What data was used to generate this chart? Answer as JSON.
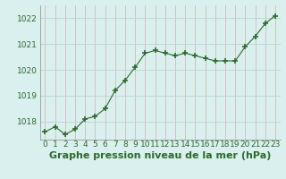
{
  "x": [
    0,
    1,
    2,
    3,
    4,
    5,
    6,
    7,
    8,
    9,
    10,
    11,
    12,
    13,
    14,
    15,
    16,
    17,
    18,
    19,
    20,
    21,
    22,
    23
  ],
  "y": [
    1017.6,
    1017.8,
    1017.5,
    1017.7,
    1018.1,
    1018.2,
    1018.5,
    1019.2,
    1019.6,
    1020.1,
    1020.65,
    1020.75,
    1020.65,
    1020.55,
    1020.65,
    1020.55,
    1020.45,
    1020.35,
    1020.35,
    1020.35,
    1020.9,
    1021.3,
    1021.8,
    1022.1
  ],
  "line_color": "#2d6a2d",
  "marker_color": "#2d6a2d",
  "bg_color": "#d9f0ee",
  "vgrid_color": "#d8b8b8",
  "hgrid_color": "#b8d4d0",
  "ylim": [
    1017.3,
    1022.5
  ],
  "xlim": [
    -0.5,
    23.5
  ],
  "yticks": [
    1018,
    1019,
    1020,
    1021,
    1022
  ],
  "xtick_labels": [
    "0",
    "1",
    "2",
    "3",
    "4",
    "5",
    "6",
    "7",
    "8",
    "9",
    "10",
    "11",
    "12",
    "13",
    "14",
    "15",
    "16",
    "17",
    "18",
    "19",
    "20",
    "21",
    "22",
    "23"
  ],
  "xlabel": "Graphe pression niveau de la mer (hPa)",
  "xlabel_fontsize": 8,
  "tick_fontsize": 6.5,
  "ytick_fontsize": 6.5
}
